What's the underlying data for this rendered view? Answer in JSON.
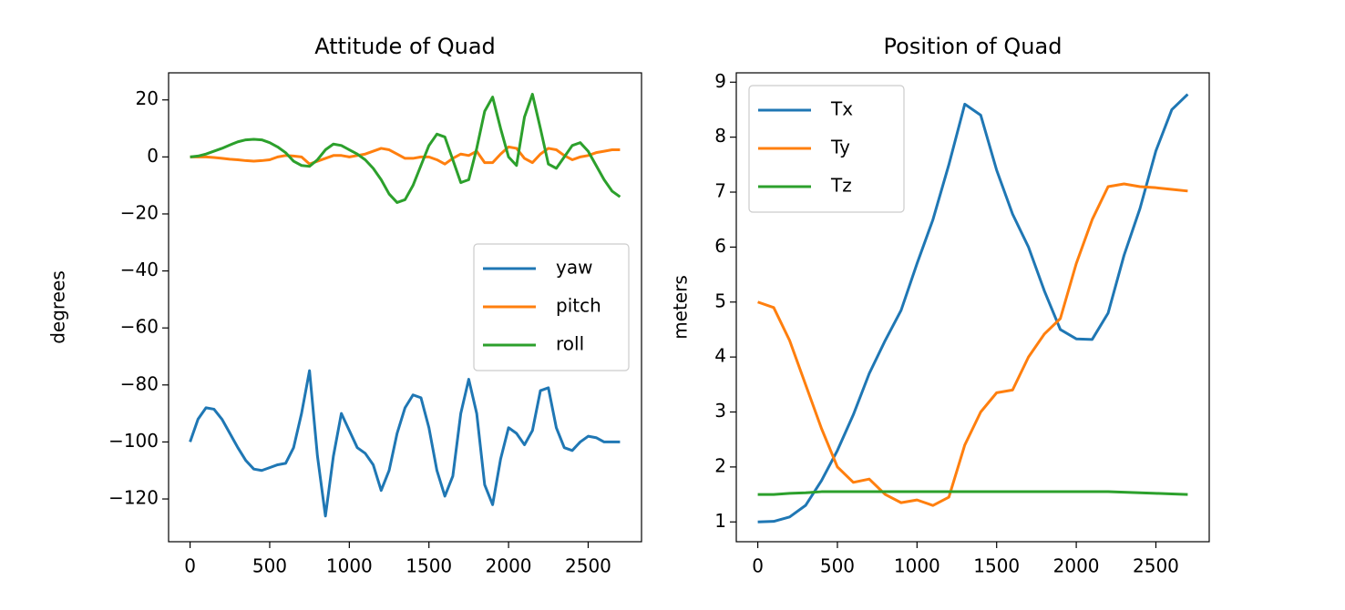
{
  "chart_data": [
    {
      "type": "line",
      "title": "Attitude of Quad",
      "ylabel": "degrees",
      "x": [
        0,
        50,
        100,
        150,
        200,
        250,
        300,
        350,
        400,
        450,
        500,
        550,
        600,
        650,
        700,
        750,
        800,
        850,
        900,
        950,
        1000,
        1050,
        1100,
        1150,
        1200,
        1250,
        1300,
        1350,
        1400,
        1450,
        1500,
        1550,
        1600,
        1650,
        1700,
        1750,
        1800,
        1850,
        1900,
        1950,
        2000,
        2050,
        2100,
        2150,
        2200,
        2250,
        2300,
        2350,
        2400,
        2450,
        2500,
        2550,
        2600,
        2650,
        2700
      ],
      "series": [
        {
          "name": "yaw",
          "color": "#1f77b4",
          "values": [
            -100,
            -92,
            -88,
            -88.5,
            -92,
            -97,
            -102,
            -106.5,
            -109.5,
            -110,
            -109,
            -108,
            -107.5,
            -102,
            -90,
            -75,
            -105,
            -126,
            -105,
            -90,
            -96,
            -102,
            -104,
            -108,
            -117,
            -110,
            -97,
            -88,
            -83.5,
            -84.5,
            -95,
            -110,
            -119,
            -112,
            -90,
            -78,
            -90,
            -115,
            -122,
            -106,
            -95,
            -97,
            -101,
            -96,
            -82,
            -81,
            -95,
            -102,
            -103,
            -100,
            -98,
            -98.5,
            -100,
            -100,
            -100
          ]
        },
        {
          "name": "pitch",
          "color": "#ff7f0e",
          "values": [
            0,
            0,
            0,
            -0.2,
            -0.5,
            -0.8,
            -1,
            -1.3,
            -1.5,
            -1.3,
            -1,
            0,
            0.5,
            0.3,
            0,
            -2.5,
            -1.5,
            -0.5,
            0.5,
            0.5,
            0,
            0.5,
            1,
            2,
            3,
            2.5,
            1,
            -0.5,
            -0.5,
            0,
            0,
            -1,
            -2.5,
            -0.5,
            1,
            0.5,
            2,
            -2,
            -2,
            1,
            3.5,
            3,
            -0.5,
            -2,
            1,
            3,
            2.5,
            0.5,
            -1,
            0,
            0.5,
            1.5,
            2,
            2.5,
            2.5
          ]
        },
        {
          "name": "roll",
          "color": "#2ca02c",
          "values": [
            0,
            0.3,
            1,
            2,
            3,
            4.2,
            5.3,
            6,
            6.2,
            6,
            5,
            3.5,
            1.5,
            -1.5,
            -3,
            -3.3,
            -1,
            2.5,
            4.5,
            4,
            2.5,
            1,
            -1,
            -4,
            -8,
            -13,
            -16,
            -15,
            -10,
            -3,
            4,
            8,
            7,
            -1,
            -9,
            -8,
            3,
            16,
            21,
            10,
            0,
            -3,
            14,
            22,
            10,
            -2.5,
            -4,
            0,
            4,
            5,
            2,
            -3,
            -8,
            -12,
            -14
          ]
        }
      ],
      "xlim": [
        -135,
        2835
      ],
      "xticks": [
        0,
        500,
        1000,
        1500,
        2000,
        2500
      ],
      "ylim": [
        -135,
        29.5
      ],
      "yticks": [
        {
          "value": -120,
          "label": "−120"
        },
        {
          "value": -100,
          "label": "−100"
        },
        {
          "value": -80,
          "label": "−80"
        },
        {
          "value": -60,
          "label": "−60"
        },
        {
          "value": -40,
          "label": "−40"
        },
        {
          "value": -20,
          "label": "−20"
        },
        0,
        20
      ],
      "legend": "center right"
    },
    {
      "type": "line",
      "title": "Position of Quad",
      "ylabel": "meters",
      "x": [
        0,
        100,
        200,
        300,
        400,
        500,
        600,
        700,
        800,
        900,
        1000,
        1100,
        1200,
        1300,
        1400,
        1500,
        1600,
        1700,
        1800,
        1900,
        2000,
        2100,
        2200,
        2300,
        2400,
        2500,
        2600,
        2700
      ],
      "series": [
        {
          "name": "Tx",
          "color": "#1f77b4",
          "values": [
            1,
            1.01,
            1.09,
            1.3,
            1.75,
            2.3,
            2.95,
            3.7,
            4.3,
            4.85,
            5.7,
            6.5,
            7.5,
            8.6,
            8.4,
            7.4,
            6.6,
            6.0,
            5.2,
            4.5,
            4.33,
            4.32,
            4.8,
            5.85,
            6.7,
            7.75,
            8.5,
            8.78
          ]
        },
        {
          "name": "Ty",
          "color": "#ff7f0e",
          "values": [
            5,
            4.9,
            4.3,
            3.5,
            2.7,
            2.0,
            1.72,
            1.78,
            1.5,
            1.35,
            1.4,
            1.3,
            1.45,
            2.4,
            3.0,
            3.35,
            3.4,
            4.0,
            4.42,
            4.7,
            5.7,
            6.5,
            7.1,
            7.15,
            7.1,
            7.08,
            7.05,
            7.02
          ]
        },
        {
          "name": "Tz",
          "color": "#2ca02c",
          "values": [
            1.5,
            1.5,
            1.52,
            1.53,
            1.55,
            1.55,
            1.55,
            1.55,
            1.55,
            1.55,
            1.55,
            1.55,
            1.55,
            1.55,
            1.55,
            1.55,
            1.55,
            1.55,
            1.55,
            1.55,
            1.55,
            1.55,
            1.55,
            1.54,
            1.53,
            1.52,
            1.51,
            1.5
          ]
        }
      ],
      "xlim": [
        -135,
        2835
      ],
      "xticks": [
        0,
        500,
        1000,
        1500,
        2000,
        2500
      ],
      "ylim": [
        0.64,
        9.17
      ],
      "yticks": [
        1,
        2,
        3,
        4,
        5,
        6,
        7,
        8,
        9
      ],
      "legend": "upper left"
    }
  ]
}
